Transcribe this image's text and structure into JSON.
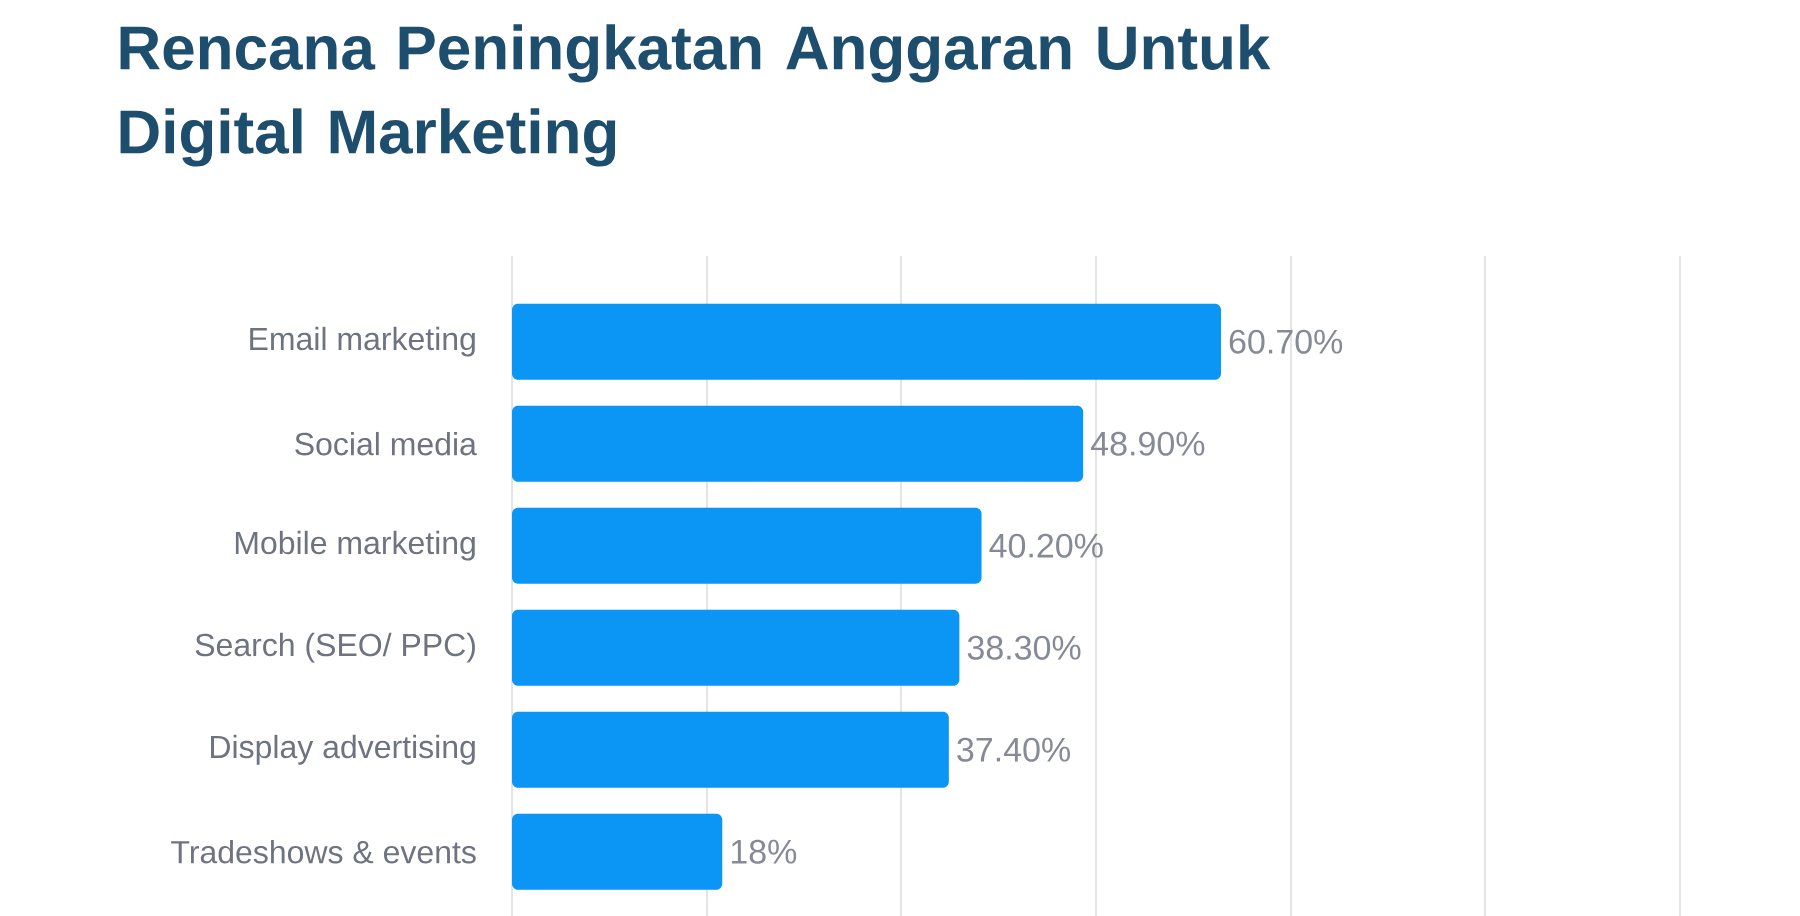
{
  "chart_data": {
    "type": "bar",
    "orientation": "horizontal",
    "title": "Rencana Peningkatan Anggaran Untuk Digital Marketing",
    "categories": [
      "Email marketing",
      "Social media",
      "Mobile marketing",
      "Search (SEO/ PPC)",
      "Display advertising",
      "Tradeshows & events"
    ],
    "values": [
      60.7,
      48.9,
      40.2,
      38.3,
      37.4,
      18
    ],
    "value_labels": [
      "60.70%",
      "48.90%",
      "40.20%",
      "38.30%",
      "37.40%",
      "18%"
    ],
    "color": "#0b95f4",
    "xlim": [
      0,
      100
    ],
    "xticks": [
      {
        "value": 0,
        "label": null
      },
      {
        "value": 16.7,
        "label": null
      },
      {
        "value": 33.3,
        "label": null
      },
      {
        "value": 50,
        "label": null
      },
      {
        "value": 66.7,
        "label": null
      },
      {
        "value": 83.3,
        "label": null
      },
      {
        "value": 100,
        "label": null
      }
    ],
    "grid": "x",
    "tick_labels": "y"
  }
}
